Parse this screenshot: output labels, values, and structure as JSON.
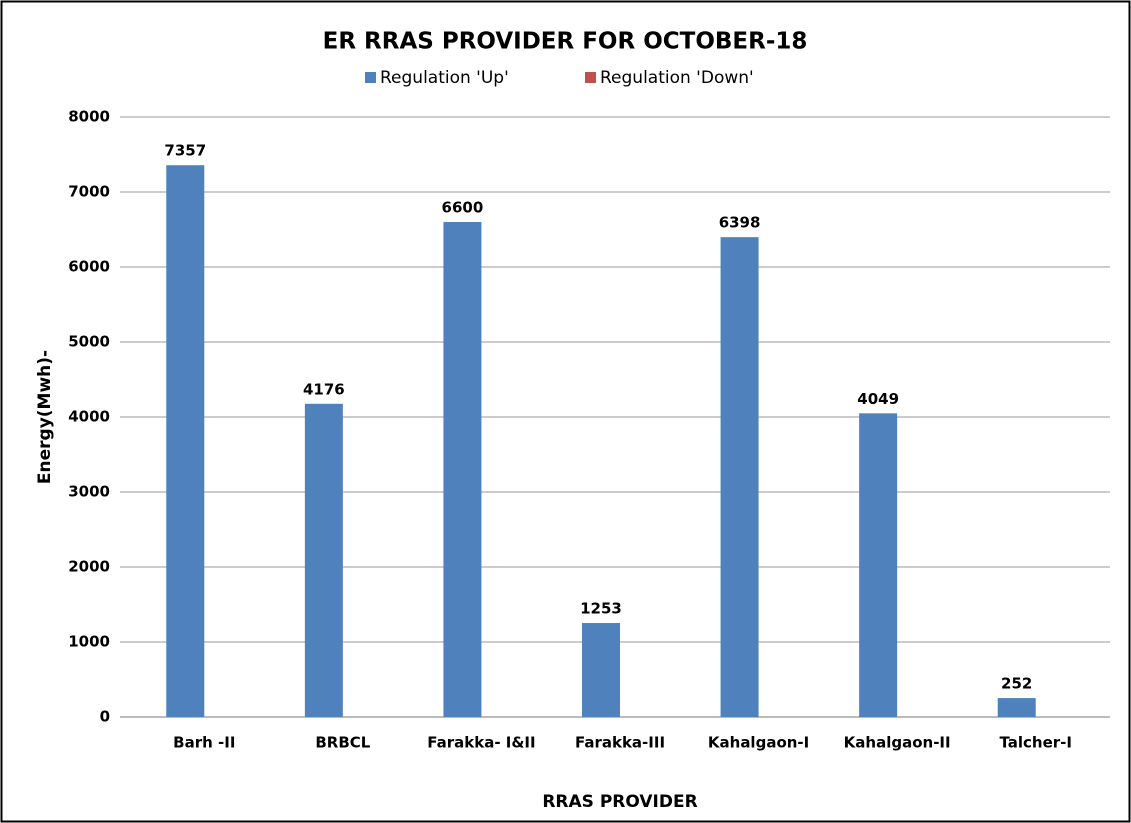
{
  "chart_data": {
    "type": "bar",
    "title": "ER RRAS PROVIDER FOR OCTOBER-18",
    "x_label": "RRAS PROVIDER",
    "y_label": "Energy(Mwh)-",
    "categories": [
      "Barh -II",
      "BRBCL",
      "Farakka- I&II",
      "Farakka-III",
      "Kahalgaon-I",
      "Kahalgaon-II",
      "Talcher-I"
    ],
    "series": [
      {
        "name": "Regulation 'Up'",
        "color": "#4f81bd",
        "values": [
          7357,
          4176,
          6600,
          1253,
          6398,
          4049,
          252
        ]
      },
      {
        "name": "Regulation 'Down'",
        "color": "#c0504d",
        "values": [
          0,
          0,
          0,
          0,
          0,
          0,
          0
        ]
      }
    ],
    "ylim": [
      0,
      8000
    ],
    "yticks": [
      0,
      1000,
      2000,
      3000,
      4000,
      5000,
      6000,
      7000,
      8000
    ],
    "grid": true,
    "legend": "top"
  }
}
